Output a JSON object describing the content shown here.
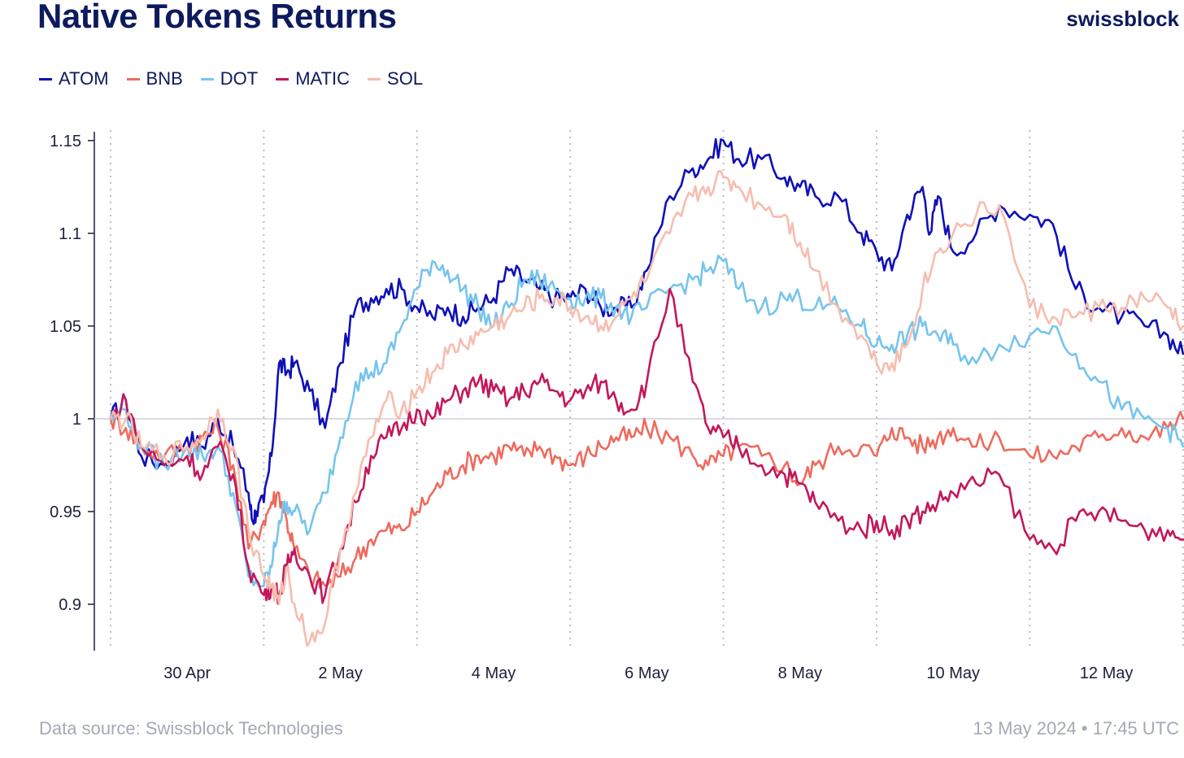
{
  "header": {
    "title": "Native Tokens Returns",
    "brand": "swissblock"
  },
  "footer": {
    "source": "Data source: Swissblock Technologies",
    "timestamp": "13 May 2024 • 17:45 UTC"
  },
  "chart_data": {
    "type": "line",
    "title": "Native Tokens Returns",
    "xlabel": "",
    "ylabel": "",
    "x_start": "29 Apr",
    "x_end": "13 May",
    "ylim": [
      0.875,
      1.16
    ],
    "y_ticks": [
      0.9,
      0.95,
      1,
      1.05,
      1.1,
      1.15
    ],
    "y_tick_labels": [
      "0.9",
      "0.95",
      "1",
      "1.05",
      "1.1",
      "1.15"
    ],
    "x_tick_labels": [
      "30 Apr",
      "2 May",
      "4 May",
      "6 May",
      "8 May",
      "10 May",
      "12 May"
    ],
    "reference_line": 1,
    "legend_position": "top-left",
    "grid": "dotted vertical day separators",
    "series": [
      {
        "name": "ATOM",
        "color": "#1010b8",
        "x": [
          0,
          0.2,
          0.4,
          0.7,
          1.0,
          1.2,
          1.4,
          1.6,
          1.8,
          1.85,
          1.9,
          2.0,
          2.1,
          2.2,
          2.3,
          2.4,
          2.6,
          2.8,
          3.0,
          3.2,
          3.4,
          3.6,
          3.8,
          4.0,
          4.2,
          4.4,
          4.6,
          4.8,
          5.0,
          5.2,
          5.4,
          5.6,
          5.8,
          6.0,
          6.2,
          6.4,
          6.6,
          6.8,
          7.0,
          7.3,
          7.6,
          7.8,
          8.0,
          8.2,
          8.5,
          8.8,
          9.0,
          9.2,
          9.5,
          9.8,
          10.0,
          10.2,
          10.4,
          10.6,
          10.7,
          10.8,
          11.0,
          11.3,
          11.6,
          12.0,
          12.3,
          12.6,
          12.9,
          13.2,
          13.5,
          13.8,
          14.0
        ],
        "values": [
          1.0,
          1.01,
          0.98,
          0.975,
          0.99,
          0.985,
          1.0,
          0.985,
          0.96,
          0.945,
          0.95,
          0.955,
          0.98,
          1.03,
          1.025,
          1.03,
          1.015,
          0.995,
          1.03,
          1.06,
          1.065,
          1.07,
          1.07,
          1.06,
          1.055,
          1.06,
          1.055,
          1.06,
          1.065,
          1.08,
          1.075,
          1.07,
          1.065,
          1.065,
          1.07,
          1.06,
          1.06,
          1.06,
          1.08,
          1.12,
          1.135,
          1.14,
          1.15,
          1.14,
          1.14,
          1.13,
          1.125,
          1.12,
          1.12,
          1.1,
          1.09,
          1.08,
          1.11,
          1.125,
          1.1,
          1.12,
          1.09,
          1.1,
          1.115,
          1.11,
          1.105,
          1.07,
          1.06,
          1.055,
          1.05,
          1.045,
          1.035
        ]
      },
      {
        "name": "BNB",
        "color": "#ee6b5e",
        "x": [
          0,
          0.2,
          0.4,
          0.7,
          1.0,
          1.2,
          1.4,
          1.6,
          1.8,
          2.0,
          2.1,
          2.2,
          2.3,
          2.4,
          2.6,
          2.8,
          3.0,
          3.2,
          3.4,
          3.6,
          3.8,
          4.0,
          4.2,
          4.4,
          4.6,
          4.8,
          5.0,
          5.2,
          5.4,
          5.6,
          5.8,
          6.0,
          6.2,
          6.4,
          6.6,
          6.8,
          7.0,
          7.3,
          7.6,
          7.8,
          8.0,
          8.2,
          8.5,
          8.8,
          9.0,
          9.2,
          9.5,
          9.8,
          10.0,
          10.2,
          10.4,
          10.6,
          10.8,
          11.0,
          11.3,
          11.6,
          12.0,
          12.3,
          12.6,
          12.9,
          13.2,
          13.5,
          13.8,
          14.0
        ],
        "values": [
          1.0,
          0.995,
          0.985,
          0.98,
          0.985,
          0.99,
          0.995,
          0.975,
          0.93,
          0.945,
          0.955,
          0.96,
          0.945,
          0.93,
          0.915,
          0.91,
          0.915,
          0.925,
          0.935,
          0.94,
          0.94,
          0.95,
          0.96,
          0.97,
          0.975,
          0.98,
          0.98,
          0.985,
          0.98,
          0.985,
          0.98,
          0.975,
          0.98,
          0.985,
          0.99,
          0.99,
          0.995,
          0.99,
          0.98,
          0.975,
          0.98,
          0.985,
          0.98,
          0.975,
          0.965,
          0.975,
          0.985,
          0.985,
          0.98,
          0.995,
          0.99,
          0.985,
          0.99,
          0.995,
          0.985,
          0.99,
          0.98,
          0.98,
          0.985,
          0.99,
          0.995,
          0.99,
          0.995,
          1.0
        ]
      },
      {
        "name": "DOT",
        "color": "#76c4ee",
        "x": [
          0,
          0.2,
          0.4,
          0.7,
          1.0,
          1.2,
          1.4,
          1.6,
          1.8,
          2.0,
          2.1,
          2.2,
          2.3,
          2.4,
          2.6,
          2.8,
          3.0,
          3.2,
          3.4,
          3.6,
          3.8,
          4.0,
          4.2,
          4.4,
          4.6,
          4.8,
          5.0,
          5.2,
          5.4,
          5.6,
          5.8,
          6.0,
          6.2,
          6.4,
          6.6,
          6.8,
          7.0,
          7.3,
          7.6,
          7.8,
          8.0,
          8.2,
          8.5,
          8.8,
          9.0,
          9.2,
          9.5,
          9.8,
          10.0,
          10.2,
          10.4,
          10.6,
          10.8,
          11.0,
          11.3,
          11.6,
          12.0,
          12.3,
          12.6,
          12.9,
          13.2,
          13.5,
          13.8,
          14.0
        ],
        "values": [
          1.0,
          1.005,
          0.985,
          0.975,
          0.985,
          0.98,
          0.985,
          0.96,
          0.915,
          0.91,
          0.92,
          0.945,
          0.955,
          0.95,
          0.94,
          0.96,
          0.99,
          1.02,
          1.025,
          1.03,
          1.05,
          1.07,
          1.085,
          1.08,
          1.07,
          1.06,
          1.05,
          1.06,
          1.075,
          1.075,
          1.07,
          1.065,
          1.065,
          1.065,
          1.06,
          1.055,
          1.06,
          1.07,
          1.075,
          1.08,
          1.085,
          1.07,
          1.06,
          1.065,
          1.065,
          1.06,
          1.06,
          1.05,
          1.04,
          1.04,
          1.045,
          1.05,
          1.045,
          1.04,
          1.03,
          1.04,
          1.045,
          1.05,
          1.035,
          1.02,
          1.005,
          1.0,
          0.995,
          0.985
        ]
      },
      {
        "name": "MATIC",
        "color": "#c2185b",
        "x": [
          0,
          0.2,
          0.4,
          0.7,
          1.0,
          1.2,
          1.4,
          1.6,
          1.8,
          2.0,
          2.1,
          2.2,
          2.3,
          2.4,
          2.6,
          2.8,
          3.0,
          3.2,
          3.4,
          3.6,
          3.8,
          4.0,
          4.2,
          4.4,
          4.6,
          4.8,
          5.0,
          5.2,
          5.4,
          5.6,
          5.8,
          6.0,
          6.2,
          6.4,
          6.6,
          6.8,
          7.0,
          7.3,
          7.6,
          7.8,
          8.0,
          8.2,
          8.5,
          8.8,
          9.0,
          9.2,
          9.5,
          9.8,
          10.0,
          10.2,
          10.4,
          10.6,
          10.8,
          11.0,
          11.3,
          11.6,
          12.0,
          12.3,
          12.6,
          12.9,
          13.2,
          13.5,
          13.8,
          14.0
        ],
        "values": [
          1.0,
          1.01,
          0.985,
          0.975,
          0.98,
          0.97,
          0.985,
          0.97,
          0.92,
          0.905,
          0.91,
          0.905,
          0.92,
          0.93,
          0.915,
          0.905,
          0.93,
          0.955,
          0.98,
          0.99,
          0.995,
          1.005,
          1.0,
          1.01,
          1.015,
          1.02,
          1.015,
          1.01,
          1.015,
          1.02,
          1.015,
          1.01,
          1.015,
          1.02,
          1.01,
          1.005,
          1.02,
          1.07,
          1.02,
          0.995,
          0.99,
          0.985,
          0.975,
          0.97,
          0.965,
          0.955,
          0.945,
          0.94,
          0.945,
          0.94,
          0.945,
          0.95,
          0.955,
          0.96,
          0.965,
          0.97,
          0.935,
          0.93,
          0.945,
          0.95,
          0.945,
          0.94,
          0.94,
          0.935
        ]
      },
      {
        "name": "SOL",
        "color": "#f6bdaf",
        "x": [
          0,
          0.2,
          0.4,
          0.7,
          1.0,
          1.2,
          1.4,
          1.6,
          1.8,
          2.0,
          2.1,
          2.2,
          2.3,
          2.4,
          2.6,
          2.8,
          3.0,
          3.2,
          3.4,
          3.6,
          3.8,
          4.0,
          4.2,
          4.4,
          4.6,
          4.8,
          5.0,
          5.2,
          5.4,
          5.6,
          5.8,
          6.0,
          6.2,
          6.4,
          6.6,
          6.8,
          7.0,
          7.3,
          7.6,
          7.8,
          8.0,
          8.2,
          8.5,
          8.8,
          9.0,
          9.2,
          9.5,
          9.8,
          10.0,
          10.2,
          10.4,
          10.6,
          10.8,
          11.0,
          11.3,
          11.6,
          12.0,
          12.3,
          12.6,
          12.9,
          13.2,
          13.5,
          13.8,
          14.0
        ],
        "values": [
          1.0,
          1.0,
          0.985,
          0.98,
          0.985,
          0.99,
          1.005,
          0.985,
          0.94,
          0.915,
          0.91,
          0.9,
          0.92,
          0.9,
          0.88,
          0.89,
          0.93,
          0.96,
          0.99,
          1.01,
          1.005,
          1.015,
          1.025,
          1.035,
          1.04,
          1.045,
          1.05,
          1.055,
          1.06,
          1.065,
          1.065,
          1.06,
          1.055,
          1.05,
          1.055,
          1.065,
          1.075,
          1.1,
          1.12,
          1.125,
          1.13,
          1.125,
          1.115,
          1.11,
          1.095,
          1.08,
          1.06,
          1.045,
          1.03,
          1.03,
          1.04,
          1.07,
          1.09,
          1.1,
          1.11,
          1.115,
          1.06,
          1.055,
          1.055,
          1.06,
          1.06,
          1.065,
          1.06,
          1.05
        ]
      }
    ]
  }
}
